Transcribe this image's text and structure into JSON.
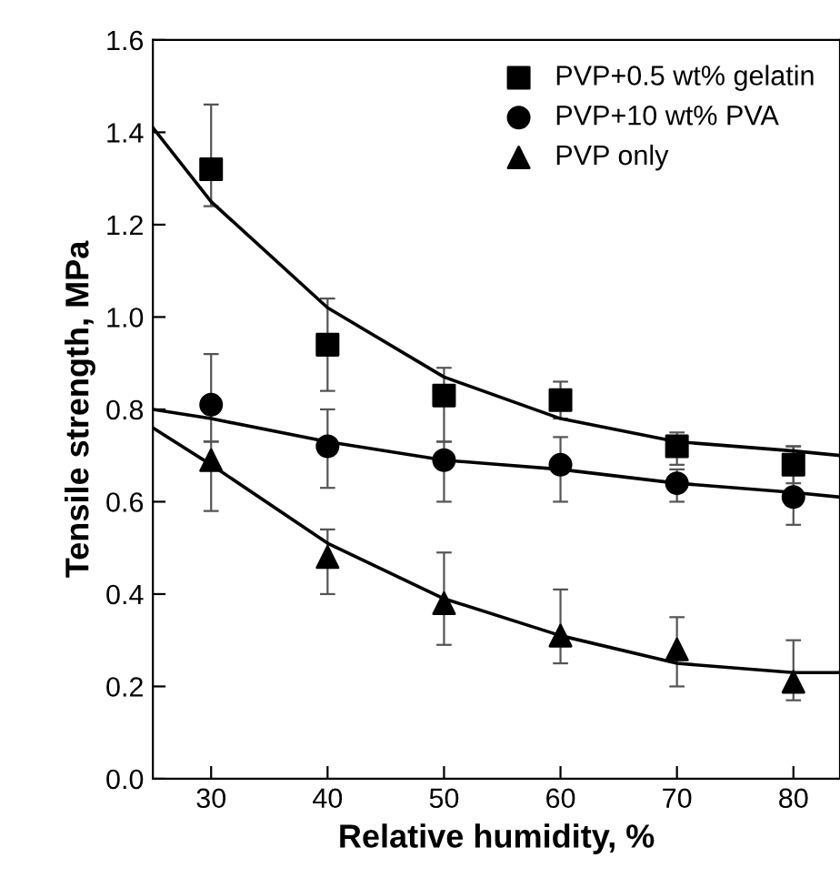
{
  "chart_data": {
    "type": "scatter",
    "xlabel": "Relative humidity, %",
    "ylabel": "Tensile strength, MPa",
    "x": [
      30,
      40,
      50,
      60,
      70,
      80
    ],
    "series": [
      {
        "name": "PVP+0.5 wt% gelatin",
        "color": "#000000",
        "marker": "square",
        "values": [
          1.32,
          0.94,
          0.83,
          0.82,
          0.72,
          0.68
        ],
        "errors": [
          [
            1.24,
            1.46
          ],
          [
            0.84,
            1.04
          ],
          [
            0.73,
            0.89
          ],
          [
            0.78,
            0.86
          ],
          [
            0.68,
            0.75
          ],
          [
            0.64,
            0.72
          ]
        ]
      },
      {
        "name": "PVP+10 wt% PVA",
        "color": "#000000",
        "marker": "circle",
        "values": [
          0.81,
          0.72,
          0.69,
          0.68,
          0.64,
          0.61
        ],
        "errors": [
          [
            0.73,
            0.92
          ],
          [
            0.63,
            0.8
          ],
          [
            0.6,
            0.73
          ],
          [
            0.6,
            0.74
          ],
          [
            0.6,
            0.67
          ],
          [
            0.55,
            0.72
          ]
        ]
      },
      {
        "name": "PVP only",
        "color": "#000000",
        "marker": "triangle",
        "values": [
          0.69,
          0.48,
          0.38,
          0.31,
          0.28,
          0.21
        ],
        "errors": [
          [
            0.58,
            0.73
          ],
          [
            0.4,
            0.54
          ],
          [
            0.29,
            0.49
          ],
          [
            0.25,
            0.41
          ],
          [
            0.2,
            0.35
          ],
          [
            0.17,
            0.3
          ]
        ]
      },
      {
        "type": "line",
        "color": "#000000",
        "marker": "none",
        "x": [
          25,
          30,
          40,
          50,
          60,
          70,
          80,
          84
        ],
        "values": [
          1.41,
          1.25,
          1.02,
          0.87,
          0.78,
          0.73,
          0.71,
          0.7
        ]
      },
      {
        "type": "line",
        "color": "#000000",
        "marker": "none",
        "x": [
          25,
          30,
          40,
          50,
          60,
          70,
          80,
          84
        ],
        "values": [
          0.8,
          0.78,
          0.73,
          0.69,
          0.67,
          0.64,
          0.62,
          0.61
        ]
      },
      {
        "type": "line",
        "color": "#000000",
        "marker": "none",
        "x": [
          25,
          30,
          40,
          50,
          60,
          70,
          80,
          84
        ],
        "values": [
          0.76,
          0.68,
          0.51,
          0.39,
          0.31,
          0.25,
          0.23,
          0.23
        ]
      }
    ],
    "xlim": [
      25,
      84
    ],
    "xticks": [
      30,
      40,
      50,
      60,
      70,
      80
    ],
    "ylim": [
      0,
      1.6
    ],
    "yticks": [
      {
        "value": 0,
        "label": "0.0"
      },
      0.2,
      0.4,
      0.6,
      0.8,
      {
        "value": 1,
        "label": "1.0"
      },
      1.2,
      1.4,
      1.6
    ],
    "grid": false,
    "legend": "top right"
  }
}
